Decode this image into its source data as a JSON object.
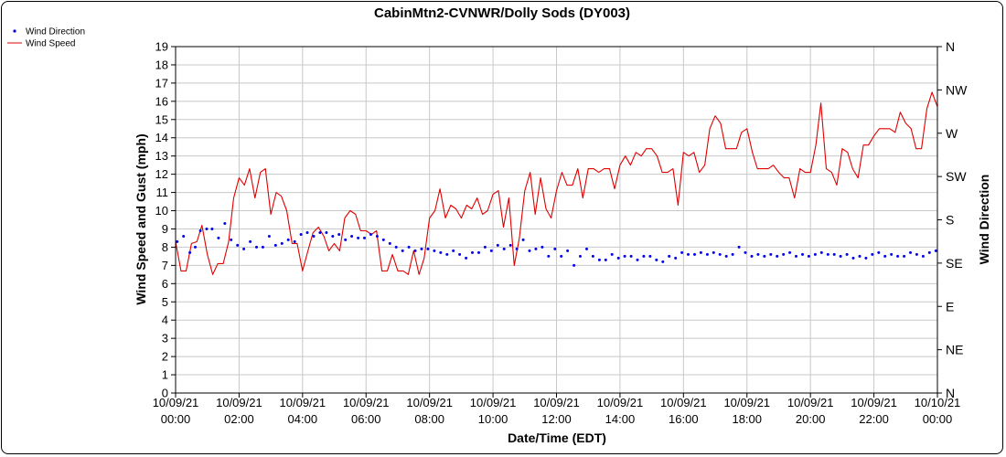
{
  "chart_data": {
    "type": "line",
    "title": "CabinMtn2-CVNWR/Dolly Sods (DY003)",
    "xlabel": "Date/Time (EDT)",
    "ylabel": "Wind Speed and Gust (mph)",
    "y2label": "Wind Direction",
    "ylim": [
      0,
      19
    ],
    "yticks": [
      0,
      1,
      2,
      3,
      4,
      5,
      6,
      7,
      8,
      9,
      10,
      11,
      12,
      13,
      14,
      15,
      16,
      17,
      18,
      19
    ],
    "y2ticks": [
      "N",
      "NE",
      "E",
      "SE",
      "S",
      "SW",
      "W",
      "NW",
      "N"
    ],
    "xlim": [
      "10/09/21 00:00",
      "10/10/21 00:00"
    ],
    "xticks": [
      {
        "date": "10/09/21",
        "time": "00:00"
      },
      {
        "date": "10/09/21",
        "time": "02:00"
      },
      {
        "date": "10/09/21",
        "time": "04:00"
      },
      {
        "date": "10/09/21",
        "time": "06:00"
      },
      {
        "date": "10/09/21",
        "time": "08:00"
      },
      {
        "date": "10/09/21",
        "time": "10:00"
      },
      {
        "date": "10/09/21",
        "time": "12:00"
      },
      {
        "date": "10/09/21",
        "time": "14:00"
      },
      {
        "date": "10/09/21",
        "time": "16:00"
      },
      {
        "date": "10/09/21",
        "time": "18:00"
      },
      {
        "date": "10/09/21",
        "time": "20:00"
      },
      {
        "date": "10/09/21",
        "time": "22:00"
      },
      {
        "date": "10/10/21",
        "time": "00:00"
      }
    ],
    "grid": true,
    "legend": "top-left",
    "colors": {
      "speed": "#e00000",
      "direction": "#0000ee",
      "grid": "#c8c8c8"
    },
    "series": [
      {
        "name": "Wind Speed",
        "style": "line",
        "hours": [
          0,
          0.17,
          0.33,
          0.5,
          0.67,
          0.83,
          1,
          1.17,
          1.33,
          1.5,
          1.67,
          1.83,
          2,
          2.17,
          2.33,
          2.5,
          2.67,
          2.83,
          3,
          3.17,
          3.33,
          3.5,
          3.67,
          3.83,
          4,
          4.17,
          4.33,
          4.5,
          4.67,
          4.83,
          5,
          5.17,
          5.33,
          5.5,
          5.67,
          5.83,
          6,
          6.17,
          6.33,
          6.5,
          6.67,
          6.83,
          7,
          7.17,
          7.33,
          7.5,
          7.67,
          7.83,
          8,
          8.17,
          8.33,
          8.5,
          8.67,
          8.83,
          9,
          9.17,
          9.33,
          9.5,
          9.67,
          9.83,
          10,
          10.17,
          10.33,
          10.5,
          10.67,
          10.83,
          11,
          11.17,
          11.33,
          11.5,
          11.67,
          11.83,
          12,
          12.17,
          12.33,
          12.5,
          12.67,
          12.83,
          13,
          13.17,
          13.33,
          13.5,
          13.67,
          13.83,
          14,
          14.17,
          14.33,
          14.5,
          14.67,
          14.83,
          15,
          15.17,
          15.33,
          15.5,
          15.67,
          15.83,
          16,
          16.17,
          16.33,
          16.5,
          16.67,
          16.83,
          17,
          17.17,
          17.33,
          17.5,
          17.67,
          17.83,
          18,
          18.17,
          18.33,
          18.5,
          18.67,
          18.83,
          19,
          19.17,
          19.33,
          19.5,
          19.67,
          19.83,
          20,
          20.17,
          20.33,
          20.5,
          20.67,
          20.83,
          21,
          21.17,
          21.33,
          21.5,
          21.67,
          21.83,
          22,
          22.17,
          22.33,
          22.5,
          22.67,
          22.83,
          23,
          23.17,
          23.33,
          23.5,
          23.67,
          23.83,
          24
        ],
        "values": [
          8.3,
          6.7,
          6.7,
          8.2,
          8.3,
          9.2,
          7.6,
          6.5,
          7.1,
          7.1,
          8.3,
          10.7,
          11.8,
          11.4,
          12.3,
          10.7,
          12.1,
          12.3,
          9.8,
          11,
          10.8,
          10,
          8.2,
          8.2,
          6.7,
          7.8,
          8.8,
          9.1,
          8.6,
          7.8,
          8.2,
          7.8,
          9.6,
          10,
          9.8,
          8.9,
          8.9,
          8.7,
          8.9,
          6.7,
          6.7,
          7.6,
          6.7,
          6.7,
          6.5,
          7.8,
          6.5,
          7.4,
          9.6,
          10,
          11.2,
          9.6,
          10.3,
          10.1,
          9.6,
          10.3,
          10.1,
          10.7,
          9.8,
          10,
          10.9,
          11.1,
          9.1,
          10.7,
          7,
          8.5,
          11.1,
          12.1,
          9.8,
          11.8,
          10.1,
          9.6,
          11.1,
          12.1,
          11.4,
          11.4,
          12.3,
          10.7,
          12.3,
          12.3,
          12.1,
          12.3,
          12.3,
          11.2,
          12.5,
          13,
          12.5,
          13.2,
          13,
          13.4,
          13.4,
          13,
          12.1,
          12.1,
          12.3,
          10.3,
          13.2,
          13,
          13.2,
          12.1,
          12.5,
          14.5,
          15.2,
          14.8,
          13.4,
          13.4,
          13.4,
          14.3,
          14.5,
          13.2,
          12.3,
          12.3,
          12.3,
          12.5,
          12.1,
          11.8,
          11.8,
          10.7,
          12.3,
          12.1,
          12.1,
          13.6,
          15.9,
          12.3,
          12.1,
          11.4,
          13.4,
          13.2,
          12.3,
          11.8,
          13.6,
          13.6,
          14.1,
          14.5,
          14.5,
          14.5,
          14.3,
          15.4,
          14.8,
          14.5,
          13.4,
          13.4,
          15.6,
          16.5,
          15.7
        ]
      },
      {
        "name": "Wind Direction",
        "style": "points",
        "hours": [
          0.05,
          0.25,
          0.45,
          0.62,
          0.78,
          0.98,
          1.15,
          1.35,
          1.55,
          1.75,
          1.95,
          2.15,
          2.35,
          2.55,
          2.75,
          2.95,
          3.15,
          3.35,
          3.55,
          3.75,
          3.95,
          4.15,
          4.35,
          4.55,
          4.75,
          4.95,
          5.15,
          5.35,
          5.55,
          5.75,
          5.95,
          6.15,
          6.35,
          6.55,
          6.75,
          6.95,
          7.15,
          7.35,
          7.55,
          7.75,
          7.95,
          8.15,
          8.35,
          8.55,
          8.75,
          8.95,
          9.15,
          9.35,
          9.55,
          9.75,
          9.95,
          10.15,
          10.35,
          10.55,
          10.75,
          10.95,
          11.15,
          11.35,
          11.55,
          11.75,
          11.95,
          12.15,
          12.35,
          12.55,
          12.75,
          12.95,
          13.15,
          13.35,
          13.55,
          13.75,
          13.95,
          14.15,
          14.35,
          14.55,
          14.75,
          14.95,
          15.15,
          15.35,
          15.55,
          15.75,
          15.95,
          16.15,
          16.35,
          16.55,
          16.75,
          16.95,
          17.15,
          17.35,
          17.55,
          17.75,
          17.95,
          18.15,
          18.35,
          18.55,
          18.75,
          18.95,
          19.15,
          19.35,
          19.55,
          19.75,
          19.95,
          20.15,
          20.35,
          20.55,
          20.75,
          20.95,
          21.15,
          21.35,
          21.55,
          21.75,
          21.95,
          22.15,
          22.35,
          22.55,
          22.75,
          22.95,
          23.15,
          23.35,
          23.55,
          23.75,
          23.95
        ],
        "values": [
          8.3,
          8.6,
          7.7,
          8,
          8.9,
          9,
          9,
          8.5,
          9.3,
          8.4,
          8.1,
          7.9,
          8.3,
          8,
          8,
          8.6,
          8.1,
          8.2,
          8.4,
          8.3,
          8.7,
          8.8,
          8.6,
          8.8,
          8.8,
          8.6,
          8.7,
          8.4,
          8.6,
          8.5,
          8.5,
          8.7,
          8.6,
          8.4,
          8.2,
          8,
          7.8,
          8,
          7.8,
          7.9,
          7.9,
          7.8,
          7.7,
          7.6,
          7.8,
          7.6,
          7.4,
          7.7,
          7.7,
          8,
          7.8,
          8.1,
          7.9,
          8.1,
          7.9,
          8.4,
          7.8,
          7.9,
          8,
          7.5,
          7.9,
          7.5,
          7.8,
          7,
          7.5,
          7.9,
          7.5,
          7.3,
          7.3,
          7.6,
          7.4,
          7.5,
          7.5,
          7.3,
          7.5,
          7.5,
          7.3,
          7.2,
          7.5,
          7.4,
          7.7,
          7.6,
          7.6,
          7.7,
          7.6,
          7.7,
          7.6,
          7.5,
          7.6,
          8,
          7.7,
          7.5,
          7.6,
          7.5,
          7.6,
          7.5,
          7.6,
          7.7,
          7.5,
          7.6,
          7.5,
          7.6,
          7.7,
          7.6,
          7.6,
          7.5,
          7.6,
          7.4,
          7.5,
          7.4,
          7.6,
          7.7,
          7.5,
          7.6,
          7.5,
          7.5,
          7.7,
          7.6,
          7.5,
          7.7,
          7.8
        ]
      }
    ]
  }
}
